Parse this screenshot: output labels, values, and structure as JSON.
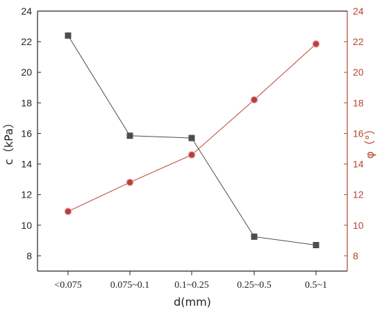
{
  "chart_data": {
    "type": "line",
    "categories": [
      "<0.075",
      "0.075~0.1",
      "0.1~0.25",
      "0.25~0.5",
      "0.5~1"
    ],
    "xlabel": "d(mm)",
    "ylabel_left": "c（kPa）",
    "ylabel_right": "φ（°）",
    "ylim_left": [
      7,
      24
    ],
    "ylim_right": [
      7,
      24
    ],
    "yticks_left": [
      8,
      10,
      12,
      14,
      16,
      18,
      20,
      22,
      24
    ],
    "yticks_right": [
      8,
      10,
      12,
      14,
      16,
      18,
      20,
      22,
      24
    ],
    "series": [
      {
        "axis": "left",
        "marker": "square",
        "color": "#4d4d4d",
        "values": [
          22.4,
          15.85,
          15.7,
          9.25,
          8.7
        ]
      },
      {
        "axis": "right",
        "marker": "circle",
        "color": "#b5442e",
        "values": [
          10.9,
          12.8,
          14.6,
          18.2,
          21.85
        ]
      }
    ],
    "left_axis_color": "#222222",
    "right_axis_color": "#b5442e",
    "grid": false,
    "legend": "none"
  }
}
